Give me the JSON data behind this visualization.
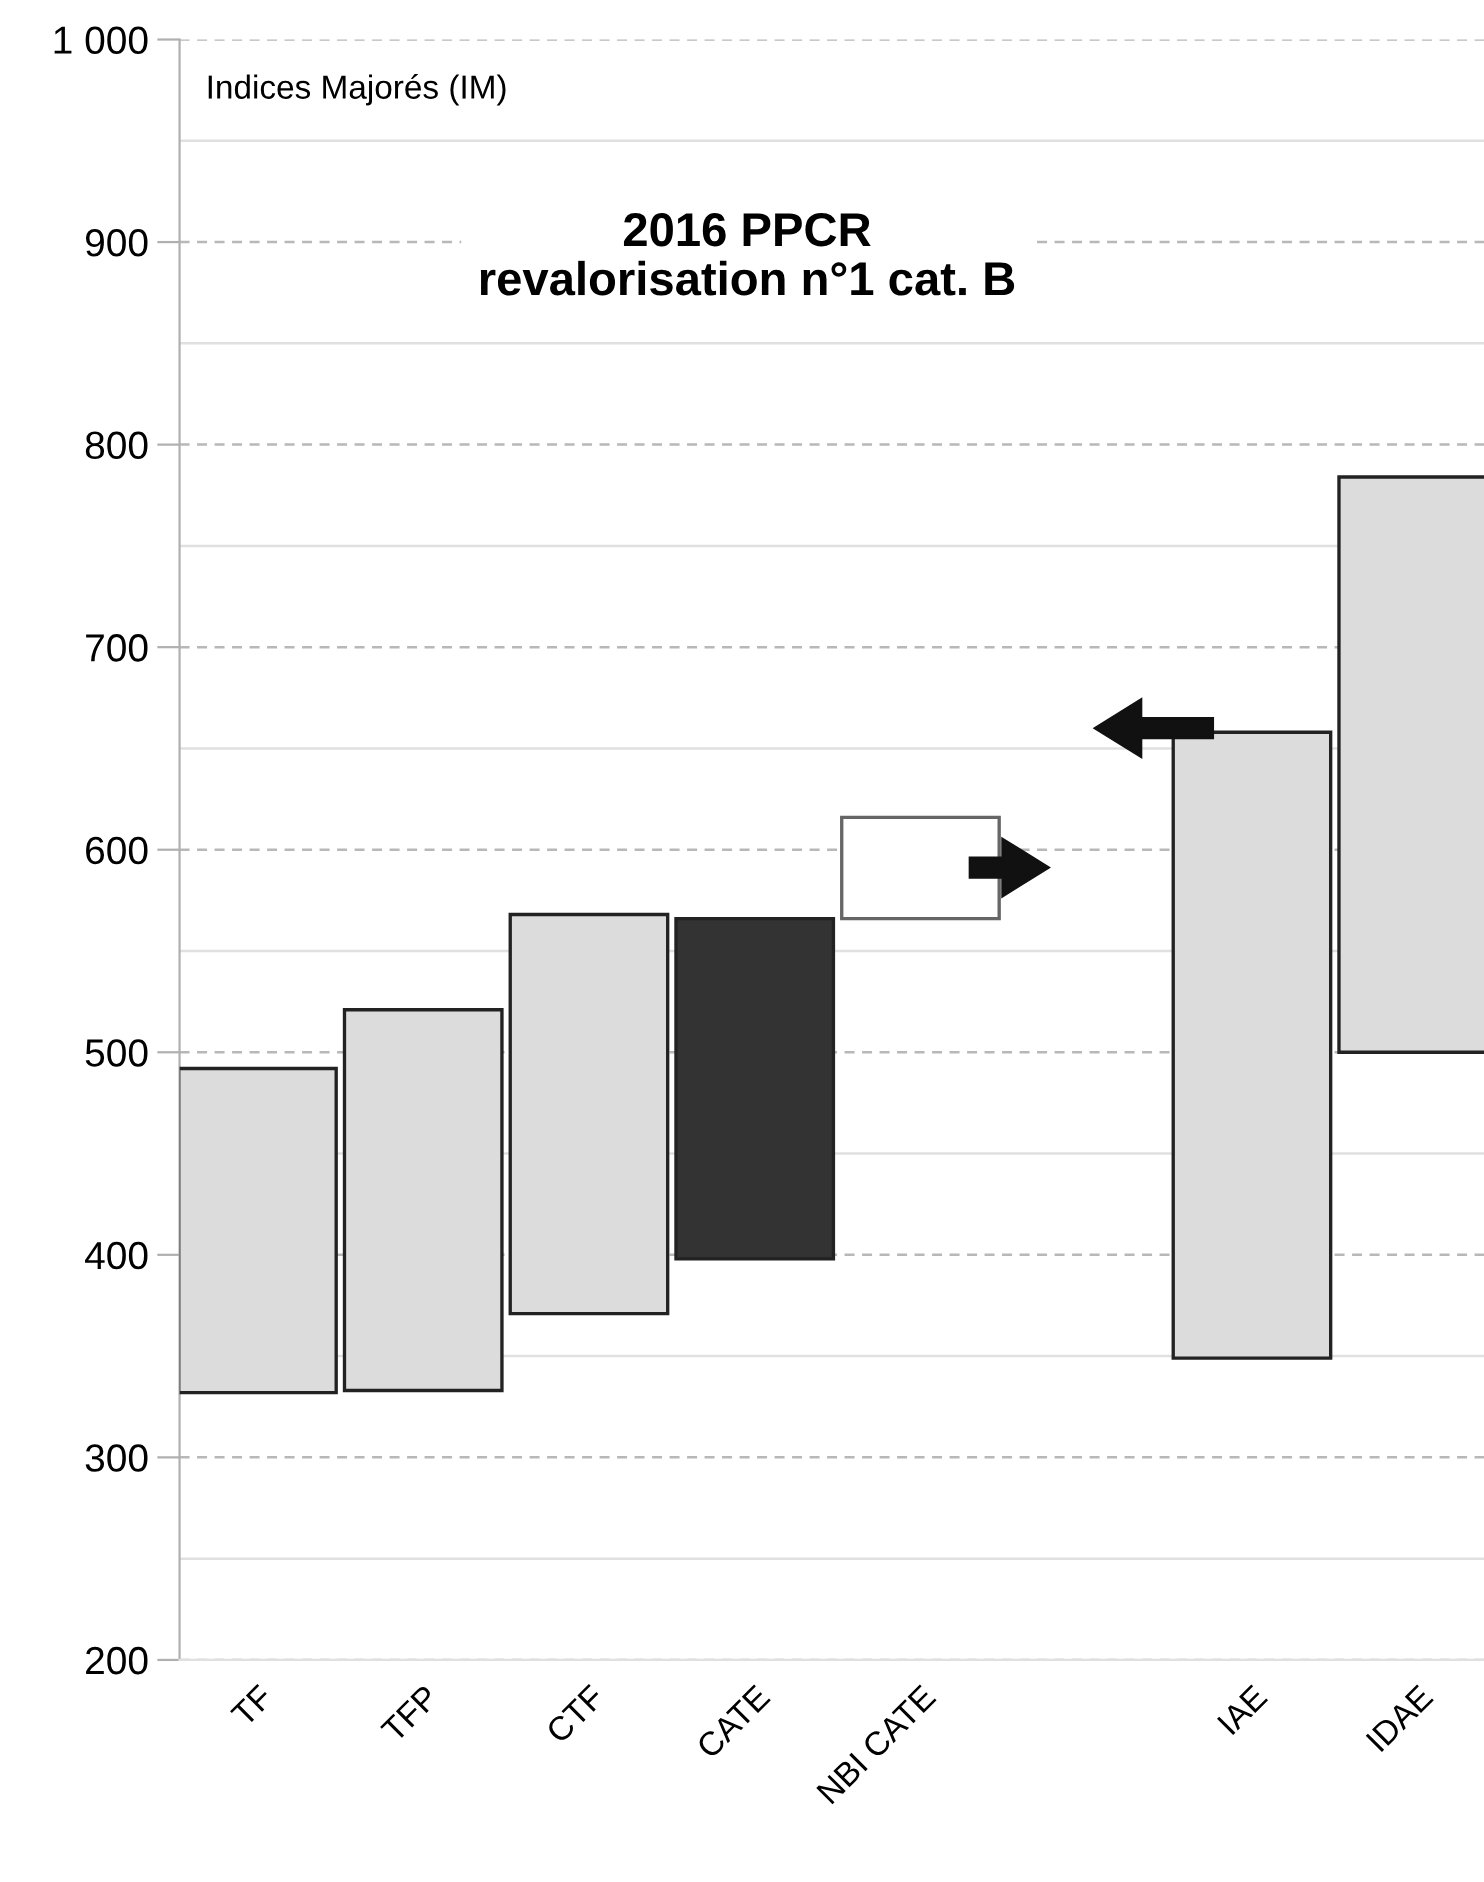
{
  "chart_data": {
    "type": "bar",
    "title": "2016 PPCR\nrevalorisation n°1 cat. B",
    "ylabel": "Indices Majorés (IM)",
    "categories": [
      "TF",
      "TFP",
      "CTF",
      "CATE",
      "NBI CATE",
      null,
      "IAE",
      "IDAE"
    ],
    "base": [
      332,
      333,
      371,
      398,
      566,
      null,
      349,
      500
    ],
    "values": [
      160,
      188,
      197,
      168,
      50,
      null,
      309,
      284
    ],
    "colors": [
      "#dcdcdc",
      "#dcdcdc",
      "#dcdcdc",
      "#333333",
      "#ffffff",
      "#ffffff",
      "#dcdcdc",
      "#dcdcdc"
    ],
    "ylim": [
      200,
      1000
    ],
    "yticks": [
      200,
      300,
      400,
      500,
      600,
      700,
      800,
      900,
      {
        "value": 1000,
        "label": "1 000"
      }
    ],
    "grid": "y"
  }
}
